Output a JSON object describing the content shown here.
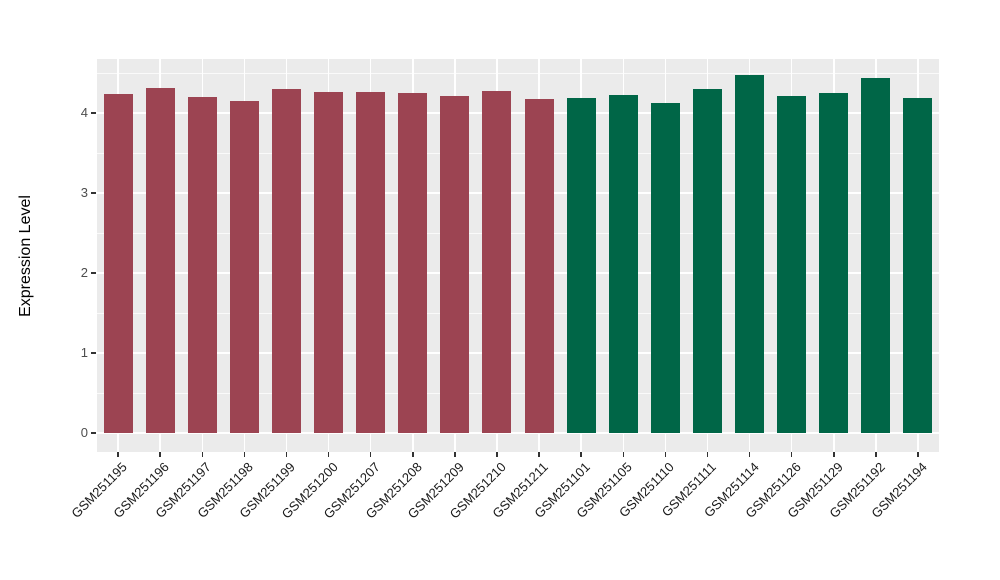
{
  "chart_data": {
    "type": "bar",
    "title": "",
    "xlabel": "",
    "ylabel": "Expression Level",
    "ylim": [
      0,
      4.7
    ],
    "yticks": [
      0,
      1,
      2,
      3,
      4
    ],
    "grid": "white major and minor horizontal gridlines plus vertical gridlines at each category, on grey panel",
    "legend_position": "none",
    "categories": [
      "GSM251195",
      "GSM251196",
      "GSM251197",
      "GSM251198",
      "GSM251199",
      "GSM251200",
      "GSM251207",
      "GSM251208",
      "GSM251209",
      "GSM251210",
      "GSM251211",
      "GSM251101",
      "GSM251105",
      "GSM251110",
      "GSM251111",
      "GSM251114",
      "GSM251126",
      "GSM251129",
      "GSM251192",
      "GSM251194"
    ],
    "values": [
      4.24,
      4.31,
      4.2,
      4.15,
      4.3,
      4.26,
      4.26,
      4.25,
      4.21,
      4.28,
      4.18,
      4.19,
      4.23,
      4.13,
      4.3,
      4.48,
      4.21,
      4.25,
      4.44,
      4.19
    ],
    "groups": [
      "maroon",
      "maroon",
      "maroon",
      "maroon",
      "maroon",
      "maroon",
      "maroon",
      "maroon",
      "maroon",
      "maroon",
      "maroon",
      "green",
      "green",
      "green",
      "green",
      "green",
      "green",
      "green",
      "green",
      "green"
    ],
    "group_colors": {
      "maroon": "#9C4452",
      "green": "#006647"
    }
  },
  "colors": {
    "panel_background": "#EBEBEB",
    "gridline": "#FFFFFF",
    "bar_maroon": "#9C4452",
    "bar_green": "#006647",
    "y_axis_text": "#4D4D4D",
    "x_axis_text": "#1A1A1A",
    "tick_mark": "#333333",
    "figure_background": "#FFFFFF"
  }
}
